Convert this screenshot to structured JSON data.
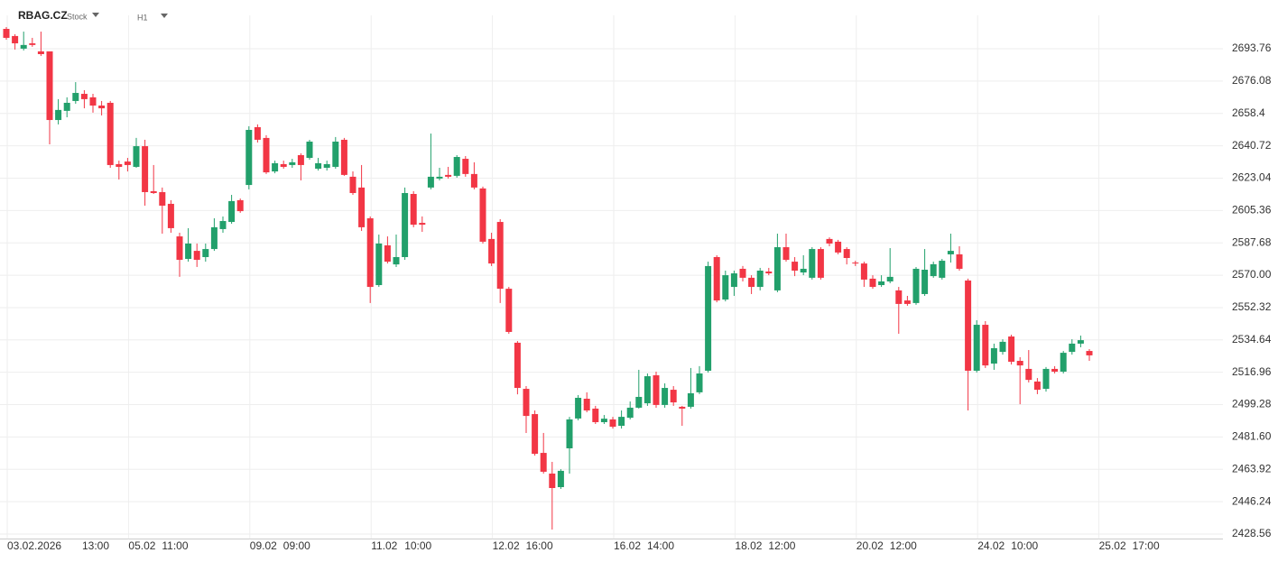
{
  "chart_data": {
    "type": "candlestick",
    "title": "RBAG.CZ",
    "subtitle": "Stock",
    "timeframe": "H1",
    "up_color": "#22a06b",
    "down_color": "#f23645",
    "ylim": [
      2426,
      2712
    ],
    "yticks": [
      2428.56,
      2446.24,
      2463.92,
      {
        "value": 2481.6,
        "label": "2481.60"
      },
      2499.28,
      2516.96,
      2534.64,
      2552.32,
      {
        "value": 2570,
        "label": "2570.00"
      },
      2587.68,
      2605.36,
      2623.04,
      2640.72,
      2658.4,
      {
        "value": 2676.08,
        "label": "2676.08"
      },
      2693.76
    ],
    "grid": true,
    "xtick_labels": [
      [
        "03.02.2026",
        "13:00"
      ],
      [
        "05.02",
        "11:00"
      ],
      [
        "09.02",
        "09:00"
      ],
      [
        "11.02",
        "10:00"
      ],
      [
        "12.02",
        "16:00"
      ],
      [
        "16.02",
        "14:00"
      ],
      [
        "18.02",
        "12:00"
      ],
      [
        "20.02",
        "12:00"
      ],
      [
        "24.02",
        "10:00"
      ],
      [
        "25.02",
        "17:00"
      ]
    ],
    "open": [
      2704.6,
      2700.7,
      2693.8,
      2696.7,
      2692.3,
      2692.3,
      2654.8,
      2659.8,
      2665.2,
      2669.1,
      2667.2,
      2662.7,
      2664.2,
      2630.7,
      2632.1,
      2629.2,
      2640.5,
      2615.9,
      2615.4,
      2609.0,
      2591.2,
      2578.9,
      2583.3,
      2579.9,
      2584.3,
      2595.2,
      2599.1,
      2611.0,
      2619.3,
      2650.9,
      2645.0,
      2626.7,
      2630.7,
      2630.2,
      2635.6,
      2634.1,
      2628.2,
      2628.7,
      2629.2,
      2644.0,
      2623.8,
      2617.9,
      2601.1,
      2564.6,
      2586.3,
      2575.9,
      2579.9,
      2614.4,
      2598.6,
      2617.9,
      2622.8,
      2624.8,
      2624.3,
      2633.6,
      2625.3,
      2617.4,
      2589.8,
      2599.1,
      2562.6,
      2533.1,
      2507.9,
      2494.1,
      2472.9,
      2461.6,
      2454.2,
      2475.4,
      2491.7,
      2502.5,
      2497.1,
      2489.7,
      2491.2,
      2487.7,
      2492.1,
      2497.6,
      2500.0,
      2515.3,
      2499.1,
      2507.4,
      2498.1,
      2498.1,
      2506.0,
      2517.8,
      2579.9,
      2556.7,
      2563.6,
      2573.5,
      2568.6,
      2563.6,
      2572.0,
      2561.7,
      2585.3,
      2577.4,
      2571.5,
      2568.6,
      2584.3,
      2589.8,
      2588.3,
      2584.3,
      2576.9,
      2576.4,
      2568.1,
      2564.6,
      2566.6,
      2561.7,
      2556.2,
      2554.8,
      2559.7,
      2569.5,
      2568.6,
      2581.4,
      2581.4,
      2567.1,
      2517.8,
      2542.9,
      2521.7,
      2528.1,
      2536.5,
      2523.2,
      2518.8,
      2511.9,
      2507.9,
      2518.8,
      2517.3,
      2528.1,
      2532.6,
      2528.6
    ],
    "high": [
      2705.6,
      2701.7,
      2703.1,
      2699.7,
      2703.1,
      2692.3,
      2666.2,
      2667.2,
      2675.5,
      2671.1,
      2669.1,
      2665.2,
      2665.2,
      2632.6,
      2634.1,
      2645.0,
      2644.0,
      2630.2,
      2617.9,
      2611.0,
      2593.2,
      2595.7,
      2587.3,
      2587.3,
      2601.1,
      2602.1,
      2613.9,
      2611.9,
      2651.4,
      2652.4,
      2646.5,
      2632.6,
      2632.6,
      2633.6,
      2636.6,
      2644.0,
      2634.1,
      2632.6,
      2645.5,
      2645.0,
      2626.7,
      2630.2,
      2602.1,
      2592.2,
      2591.2,
      2592.2,
      2617.9,
      2615.9,
      2602.1,
      2647.4,
      2628.7,
      2629.2,
      2635.6,
      2635.1,
      2631.7,
      2618.4,
      2593.2,
      2600.6,
      2563.6,
      2534.0,
      2509.4,
      2496.1,
      2483.8,
      2468.0,
      2464.0,
      2492.6,
      2504.5,
      2506.0,
      2498.6,
      2493.6,
      2492.6,
      2496.1,
      2501.0,
      2518.3,
      2516.3,
      2517.3,
      2510.9,
      2509.4,
      2498.6,
      2519.3,
      2520.3,
      2577.4,
      2580.9,
      2572.5,
      2572.5,
      2575.0,
      2570.0,
      2574.0,
      2574.0,
      2592.7,
      2592.7,
      2579.9,
      2580.9,
      2585.3,
      2585.3,
      2590.7,
      2589.3,
      2585.3,
      2577.9,
      2577.4,
      2570.0,
      2570.0,
      2584.8,
      2563.6,
      2558.7,
      2574.5,
      2584.3,
      2577.4,
      2578.9,
      2592.7,
      2585.8,
      2568.1,
      2545.4,
      2544.9,
      2532.6,
      2535.0,
      2537.5,
      2525.2,
      2529.1,
      2513.8,
      2519.8,
      2520.3,
      2528.6,
      2535.0,
      2537.0,
      2529.6
    ],
    "low": [
      2698.7,
      2693.3,
      2692.8,
      2694.8,
      2689.8,
      2641.5,
      2652.4,
      2656.3,
      2663.7,
      2661.2,
      2658.8,
      2657.3,
      2628.7,
      2622.3,
      2626.7,
      2628.7,
      2608.0,
      2614.4,
      2592.7,
      2593.2,
      2569.1,
      2577.4,
      2574.5,
      2577.4,
      2583.3,
      2593.2,
      2598.1,
      2604.1,
      2616.9,
      2642.5,
      2625.3,
      2625.7,
      2628.2,
      2628.7,
      2621.8,
      2633.1,
      2627.2,
      2627.2,
      2628.2,
      2624.3,
      2613.9,
      2594.2,
      2554.8,
      2563.6,
      2576.4,
      2574.5,
      2578.4,
      2596.2,
      2593.7,
      2616.9,
      2621.8,
      2622.8,
      2623.3,
      2623.8,
      2616.9,
      2587.3,
      2575.0,
      2554.8,
      2538.0,
      2504.9,
      2483.8,
      2471.4,
      2461.6,
      2431.0,
      2453.2,
      2461.6,
      2490.7,
      2495.1,
      2488.7,
      2488.7,
      2486.2,
      2486.2,
      2491.2,
      2497.1,
      2498.6,
      2497.6,
      2497.6,
      2498.6,
      2487.7,
      2497.1,
      2505.0,
      2516.8,
      2555.2,
      2555.7,
      2558.7,
      2566.6,
      2559.7,
      2561.7,
      2570.0,
      2560.7,
      2577.4,
      2569.5,
      2570.0,
      2567.6,
      2567.6,
      2585.8,
      2581.4,
      2575.9,
      2575.0,
      2563.6,
      2562.6,
      2563.6,
      2565.6,
      2538.0,
      2553.3,
      2553.8,
      2558.7,
      2568.6,
      2567.6,
      2576.9,
      2572.5,
      2496.1,
      2516.8,
      2519.3,
      2518.3,
      2526.6,
      2521.2,
      2499.5,
      2511.4,
      2505.0,
      2506.4,
      2516.3,
      2516.3,
      2526.6,
      2530.6,
      2523.2
    ],
    "close": [
      2699.7,
      2696.7,
      2695.8,
      2695.8,
      2690.8,
      2654.8,
      2660.3,
      2664.2,
      2669.6,
      2666.2,
      2662.7,
      2661.2,
      2630.2,
      2629.2,
      2630.2,
      2640.5,
      2615.4,
      2614.9,
      2608.0,
      2595.7,
      2578.4,
      2587.3,
      2578.4,
      2584.3,
      2596.2,
      2599.6,
      2610.5,
      2605.0,
      2649.4,
      2644.0,
      2626.2,
      2631.2,
      2629.2,
      2631.7,
      2630.2,
      2643.0,
      2631.2,
      2630.7,
      2643.0,
      2624.8,
      2614.9,
      2596.2,
      2563.6,
      2587.3,
      2577.4,
      2579.9,
      2614.9,
      2597.6,
      2597.6,
      2623.8,
      2623.8,
      2623.8,
      2634.6,
      2625.3,
      2617.9,
      2588.3,
      2576.4,
      2562.6,
      2539.0,
      2508.4,
      2493.1,
      2472.4,
      2462.6,
      2453.7,
      2463.1,
      2491.2,
      2503.0,
      2496.1,
      2489.7,
      2491.6,
      2487.2,
      2492.6,
      2497.6,
      2503.5,
      2514.8,
      2499.1,
      2508.4,
      2500.5,
      2497.1,
      2505.5,
      2516.3,
      2575.0,
      2556.2,
      2570.0,
      2571.0,
      2568.6,
      2563.6,
      2572.5,
      2571.0,
      2585.3,
      2578.4,
      2572.5,
      2573.5,
      2584.3,
      2568.6,
      2587.3,
      2582.4,
      2579.4,
      2576.4,
      2567.6,
      2563.6,
      2566.6,
      2569.1,
      2554.3,
      2554.3,
      2573.5,
      2573.0,
      2576.0,
      2577.9,
      2583.3,
      2573.5,
      2517.8,
      2542.9,
      2520.7,
      2530.1,
      2533.6,
      2522.7,
      2520.7,
      2512.8,
      2507.4,
      2518.8,
      2517.3,
      2527.6,
      2532.6,
      2534.5,
      2526.2
    ]
  }
}
